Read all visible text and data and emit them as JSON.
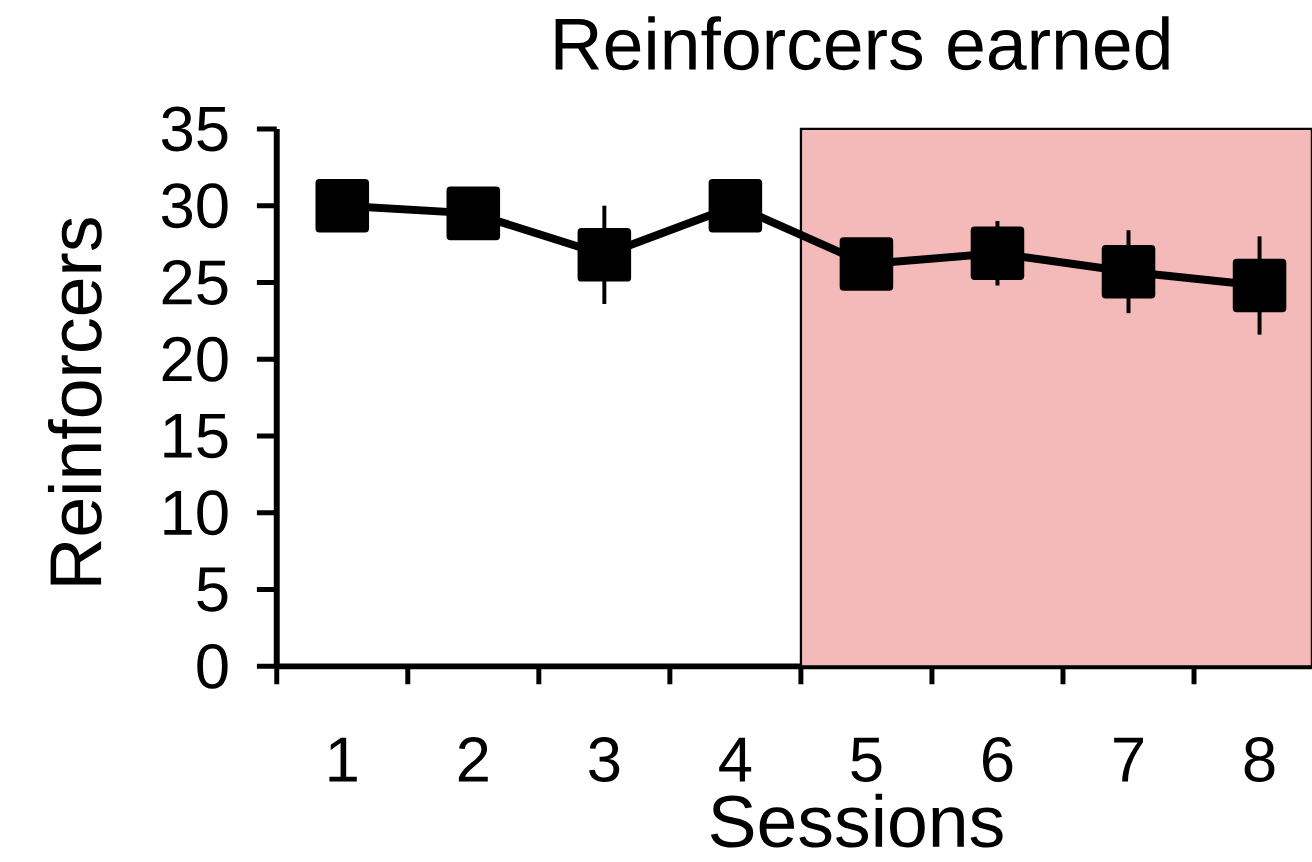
{
  "chart_data": {
    "type": "line",
    "title": "Reinforcers earned",
    "xlabel": "Sessions",
    "ylabel": "Reinforcers",
    "x": [
      1,
      2,
      3,
      4,
      5,
      6,
      7,
      8
    ],
    "series": [
      {
        "color": "#000000",
        "values": [
          30,
          29.5,
          26.8,
          30,
          26.2,
          26.9,
          25.7,
          24.8
        ],
        "errors": [
          null,
          null,
          3.2,
          null,
          1.5,
          2.1,
          2.7,
          3.2
        ]
      }
    ],
    "xlim": [
      0.5,
      8.4
    ],
    "xticks": [
      {
        "value": 0.5,
        "label": null
      },
      1,
      {
        "value": 1.5,
        "label": null
      },
      2,
      {
        "value": 2.5,
        "label": null
      },
      3,
      {
        "value": 3.5,
        "label": null
      },
      4,
      {
        "value": 4.5,
        "label": null
      },
      5,
      {
        "value": 5.5,
        "label": null
      },
      6,
      {
        "value": 6.5,
        "label": null
      },
      7,
      {
        "value": 7.5,
        "label": null
      },
      8
    ],
    "ylim": [
      0,
      35
    ],
    "yticks": [
      0,
      5,
      10,
      15,
      20,
      25,
      30,
      35
    ],
    "bands": [
      {
        "axis": "x",
        "from": 4.5,
        "to": 8.4,
        "color": "#f4b9b9"
      }
    ],
    "marker": "square",
    "line_style": "solid"
  }
}
